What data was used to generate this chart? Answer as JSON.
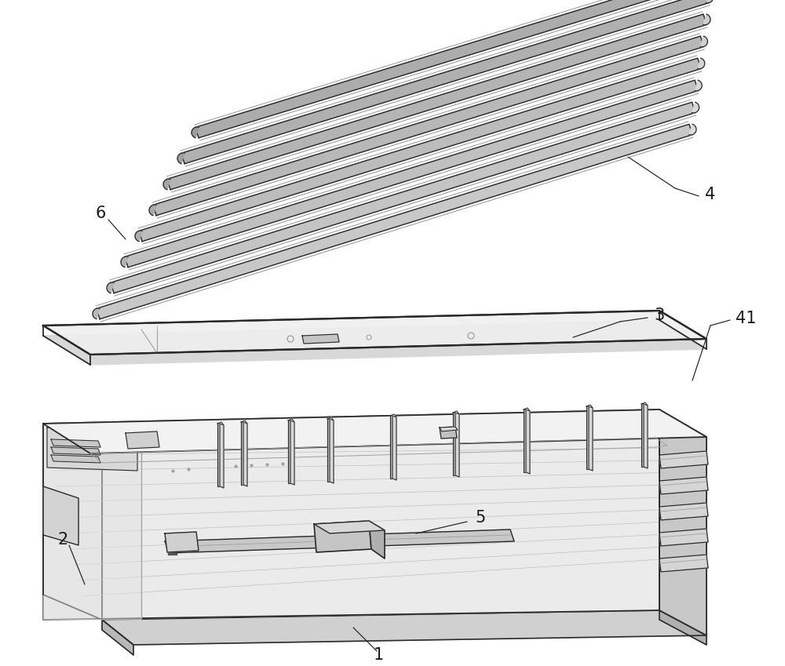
{
  "bg_color": "#ffffff",
  "line_color": "#2a2a2a",
  "light_gray": "#c8c8c8",
  "mid_gray": "#a0a0a0",
  "dark_gray": "#505050",
  "figsize": [
    10.0,
    8.49
  ],
  "dpi": 100
}
